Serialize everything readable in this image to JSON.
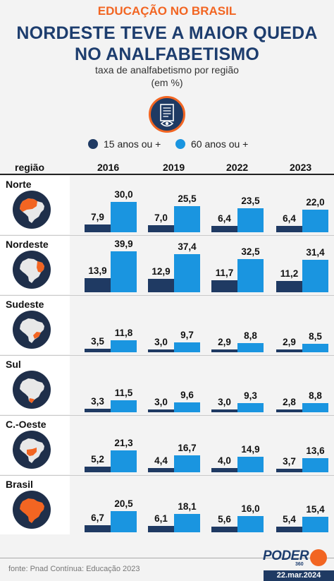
{
  "header": {
    "eyebrow": "EDUCAÇÃO NO BRASIL",
    "title_line1": "NORDESTE TEVE A MAIOR QUEDA",
    "title_line2": "NO ANALFABETISMO",
    "subtitle_line1": "taxa de analfabetismo por região",
    "subtitle_line2": "(em %)"
  },
  "icon": "document-eye-icon",
  "colors": {
    "dark_series": "#1f3a63",
    "light_series": "#1a95e0",
    "accent": "#f26522",
    "highlight_map": "#f26522"
  },
  "chart_data": {
    "type": "bar",
    "column_header": "região",
    "years": [
      "2016",
      "2019",
      "2022",
      "2023"
    ],
    "series": [
      {
        "name": "15 anos ou +",
        "color": "#1f3a63"
      },
      {
        "name": "60 anos ou +",
        "color": "#1a95e0"
      }
    ],
    "ymax": 40,
    "regions": [
      {
        "name": "Norte",
        "v15": [
          7.9,
          7.0,
          6.4,
          6.4
        ],
        "v60": [
          30.0,
          25.5,
          23.5,
          22.0
        ],
        "label15": [
          "7,9",
          "7,0",
          "6,4",
          "6,4"
        ],
        "label60": [
          "30,0",
          "25,5",
          "23,5",
          "22,0"
        ]
      },
      {
        "name": "Nordeste",
        "v15": [
          13.9,
          12.9,
          11.7,
          11.2
        ],
        "v60": [
          39.9,
          37.4,
          32.5,
          31.4
        ],
        "label15": [
          "13,9",
          "12,9",
          "11,7",
          "11,2"
        ],
        "label60": [
          "39,9",
          "37,4",
          "32,5",
          "31,4"
        ]
      },
      {
        "name": "Sudeste",
        "v15": [
          3.5,
          3.0,
          2.9,
          2.9
        ],
        "v60": [
          11.8,
          9.7,
          8.8,
          8.5
        ],
        "label15": [
          "3,5",
          "3,0",
          "2,9",
          "2,9"
        ],
        "label60": [
          "11,8",
          "9,7",
          "8,8",
          "8,5"
        ]
      },
      {
        "name": "Sul",
        "v15": [
          3.3,
          3.0,
          3.0,
          2.8
        ],
        "v60": [
          11.5,
          9.6,
          9.3,
          8.8
        ],
        "label15": [
          "3,3",
          "3,0",
          "3,0",
          "2,8"
        ],
        "label60": [
          "11,5",
          "9,6",
          "9,3",
          "8,8"
        ]
      },
      {
        "name": "C.-Oeste",
        "v15": [
          5.2,
          4.4,
          4.0,
          3.7
        ],
        "v60": [
          21.3,
          16.7,
          14.9,
          13.6
        ],
        "label15": [
          "5,2",
          "4,4",
          "4,0",
          "3,7"
        ],
        "label60": [
          "21,3",
          "16,7",
          "14,9",
          "13,6"
        ]
      },
      {
        "name": "Brasil",
        "v15": [
          6.7,
          6.1,
          5.6,
          5.4
        ],
        "v60": [
          20.5,
          18.1,
          16.0,
          15.4
        ],
        "label15": [
          "6,7",
          "6,1",
          "5,6",
          "5,4"
        ],
        "label60": [
          "20,5",
          "18,1",
          "16,0",
          "15,4"
        ]
      }
    ]
  },
  "footer": {
    "source": "fonte: Pnad Contínua: Educação 2023",
    "logo": "PODER",
    "logo_sub": "360",
    "date": "22.mar.2024"
  }
}
